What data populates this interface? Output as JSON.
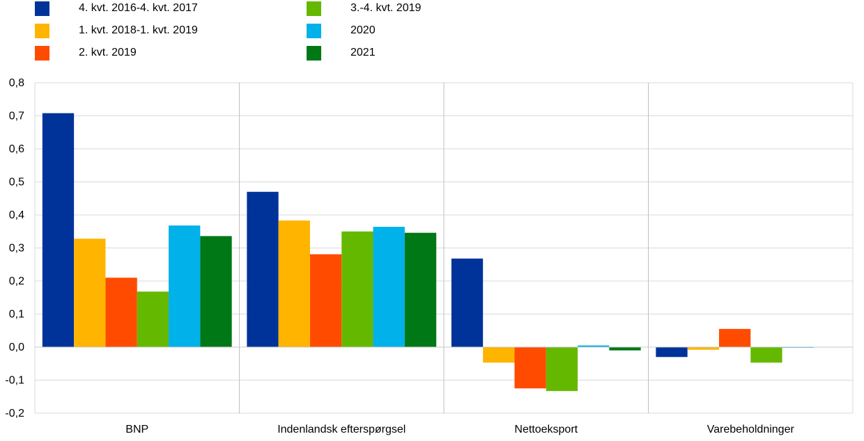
{
  "chart_data": {
    "type": "bar",
    "title": "",
    "xlabel": "",
    "ylabel": "",
    "categories": [
      "BNP",
      "Indenlandsk efterspørgsel",
      "Nettoeksport",
      "Varebeholdninger"
    ],
    "series": [
      {
        "name": "4. kvt. 2016-4. kvt. 2017",
        "color": "#003399",
        "values": [
          0.708,
          0.47,
          0.268,
          -0.03
        ]
      },
      {
        "name": "1. kvt. 2018-1. kvt. 2019",
        "color": "#FFB400",
        "values": [
          0.328,
          0.383,
          -0.047,
          -0.008
        ]
      },
      {
        "name": "2. kvt. 2019",
        "color": "#FF4B00",
        "values": [
          0.21,
          0.281,
          -0.125,
          0.055
        ]
      },
      {
        "name": "3.-4. kvt. 2019",
        "color": "#65B800",
        "values": [
          0.168,
          0.35,
          -0.133,
          -0.047
        ]
      },
      {
        "name": "2020",
        "color": "#00B1EA",
        "values": [
          0.368,
          0.364,
          0.005,
          -0.002
        ]
      },
      {
        "name": "2021",
        "color": "#007816",
        "values": [
          0.336,
          0.346,
          -0.01,
          0.001
        ]
      }
    ],
    "ylim": [
      -0.2,
      0.8
    ],
    "yticks": [
      "0,8",
      "0,7",
      "0,6",
      "0,5",
      "0,4",
      "0,3",
      "0,2",
      "0,1",
      "0,0",
      "-0,1",
      "-0,2"
    ],
    "grid": true,
    "legend_position": "top-left"
  }
}
